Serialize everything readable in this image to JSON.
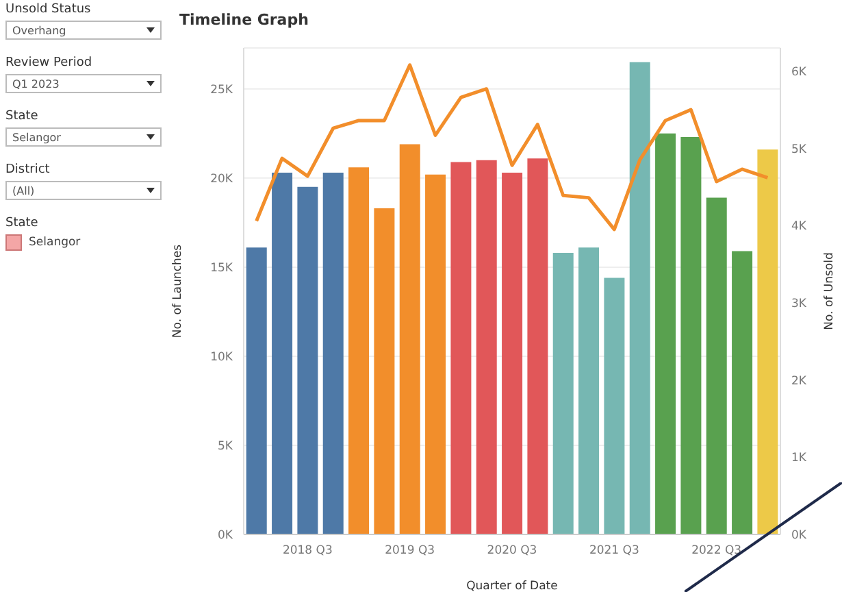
{
  "chart_data": [
    {
      "type": "bar",
      "title": "Timeline Graph",
      "xlabel": "Quarter of Date",
      "ylabel": "No. of Launches",
      "y2label": "No. of Unsold",
      "categories": [
        null,
        null,
        "2018 Q3",
        null,
        null,
        null,
        "2019 Q3",
        null,
        null,
        null,
        "2020 Q3",
        null,
        null,
        null,
        "2021 Q3",
        null,
        null,
        null,
        "2022 Q3",
        null,
        null
      ],
      "series": [
        {
          "type": "bar",
          "colors": [
            "#4e79a7",
            "#4e79a7",
            "#4e79a7",
            "#4e79a7",
            "#f28e2b",
            "#f28e2b",
            "#f28e2b",
            "#f28e2b",
            "#e15759",
            "#e15759",
            "#e15759",
            "#e15759",
            "#76b7b2",
            "#76b7b2",
            "#76b7b2",
            "#76b7b2",
            "#59a14f",
            "#59a14f",
            "#59a14f",
            "#59a14f",
            "#edc948"
          ],
          "values": [
            16100,
            20300,
            19500,
            20300,
            20600,
            18300,
            21900,
            20200,
            20900,
            21000,
            20300,
            21100,
            15800,
            16100,
            14400,
            26500,
            22500,
            22300,
            18900,
            15900,
            21600
          ]
        },
        {
          "type": "line",
          "axis": "y2",
          "color": "#f28e2b",
          "values": [
            4060,
            4870,
            4640,
            5260,
            5360,
            5360,
            6080,
            5170,
            5660,
            5770,
            4780,
            5310,
            4390,
            4360,
            3950,
            4850,
            5360,
            5500,
            4570,
            4730,
            4620
          ]
        }
      ],
      "ylim": [
        0,
        27300
      ],
      "yticks": [
        {
          "value": 0,
          "label": "0K"
        },
        {
          "value": 5000,
          "label": "5K"
        },
        {
          "value": 10000,
          "label": "10K"
        },
        {
          "value": 15000,
          "label": "15K"
        },
        {
          "value": 20000,
          "label": "20K"
        },
        {
          "value": 25000,
          "label": "25K"
        }
      ],
      "y2lim": [
        0,
        6300
      ],
      "y2ticks": [
        {
          "value": 0,
          "label": "0K"
        },
        {
          "value": 1000,
          "label": "1K"
        },
        {
          "value": 2000,
          "label": "2K"
        },
        {
          "value": 3000,
          "label": "3K"
        },
        {
          "value": 4000,
          "label": "4K"
        },
        {
          "value": 5000,
          "label": "5K"
        },
        {
          "value": 6000,
          "label": "6K"
        }
      ],
      "grid": "y"
    },
    {
      "type": "other",
      "color": "#f4a6a6",
      "annotations": [
        "Unsold Status",
        "Overhang",
        "Review Period",
        "Q1 2023",
        "State",
        "Selangor",
        "District",
        "(All)",
        "State",
        "Selangor"
      ]
    }
  ]
}
